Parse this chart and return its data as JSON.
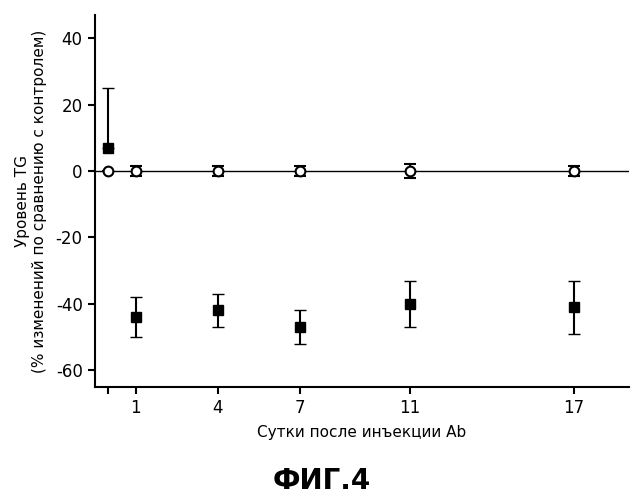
{
  "title": "ФИГ.4",
  "xlabel": "Сутки после инъекции Ab",
  "ylabel_line1": "Уровень TG",
  "ylabel_line2": "(% изменений по сравнению с контролем)",
  "xlim": [
    -0.5,
    19.0
  ],
  "ylim": [
    -65,
    47
  ],
  "yticks": [
    -60,
    -40,
    -20,
    0,
    20,
    40
  ],
  "xtick_positions": [
    0,
    1,
    4,
    7,
    11,
    17
  ],
  "xtick_labels": [
    "",
    "1",
    "4",
    "7",
    "11",
    "17"
  ],
  "control_x": [
    0,
    1,
    4,
    7,
    11,
    17
  ],
  "control_y": [
    0,
    0,
    0,
    0,
    0,
    0
  ],
  "control_yerr_neg": [
    0,
    1.5,
    1.5,
    1.5,
    2.0,
    1.5
  ],
  "control_yerr_pos": [
    0,
    1.5,
    1.5,
    1.5,
    2.0,
    1.5
  ],
  "treatment_x": [
    0,
    1,
    4,
    7,
    11,
    17
  ],
  "treatment_y": [
    7,
    -44,
    -42,
    -47,
    -40,
    -41
  ],
  "treatment_yerr_neg": [
    0,
    6,
    5,
    5,
    7,
    8
  ],
  "treatment_yerr_pos": [
    18,
    6,
    5,
    5,
    7,
    8
  ],
  "line_color": "#000000",
  "background_color": "#ffffff",
  "marker_size": 7,
  "linewidth": 1.8,
  "capsize": 4,
  "elinewidth": 1.5,
  "title_fontsize": 20,
  "axis_label_fontsize": 11,
  "tick_fontsize": 12
}
